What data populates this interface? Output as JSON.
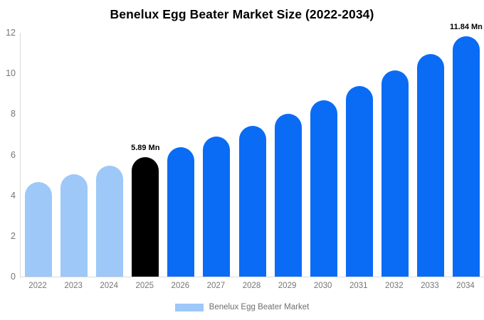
{
  "title": "Benelux Egg Beater Market Size (2022-2034)",
  "legend": {
    "label": "Benelux Egg Beater Market",
    "swatch_color": "#9dc8f8"
  },
  "colors": {
    "historical": "#9dc8f8",
    "highlight": "#000000",
    "forecast": "#0a6cf5",
    "axis_line": "#d9d9d9",
    "tick_text": "#757575",
    "label_text": "#000000"
  },
  "chart_data": {
    "type": "bar",
    "title": "Benelux Egg Beater Market Size (2022-2034)",
    "xlabel": "",
    "ylabel": "",
    "categories": [
      "2022",
      "2023",
      "2024",
      "2025",
      "2026",
      "2027",
      "2028",
      "2029",
      "2030",
      "2031",
      "2032",
      "2033",
      "2034"
    ],
    "values": [
      4.67,
      5.04,
      5.45,
      5.89,
      6.37,
      6.88,
      7.43,
      8.03,
      8.68,
      9.38,
      10.14,
      10.95,
      11.84
    ],
    "bar_styles": [
      "historical",
      "historical",
      "historical",
      "highlight",
      "forecast",
      "forecast",
      "forecast",
      "forecast",
      "forecast",
      "forecast",
      "forecast",
      "forecast",
      "forecast"
    ],
    "data_labels": {
      "2025": "5.89 Mn",
      "2034": "11.84 Mn"
    },
    "ylim": [
      0,
      12
    ],
    "yticks": [
      0,
      2,
      4,
      6,
      8,
      10,
      12
    ],
    "grid": false,
    "legend_entries": [
      "Benelux Egg Beater Market"
    ],
    "legend_position": "bottom"
  }
}
